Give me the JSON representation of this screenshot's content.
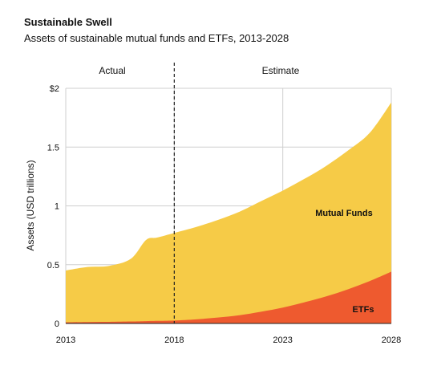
{
  "chart_data": {
    "type": "area",
    "title": "Sustainable Swell",
    "subtitle": "Assets of sustainable mutual funds and ETFs, 2013-2028",
    "ylabel": "Assets (USD trillions)",
    "xlabel": "",
    "x": [
      2013,
      2014,
      2015,
      2016,
      2016.7,
      2017.2,
      2018,
      2019,
      2020,
      2021,
      2022,
      2023,
      2024,
      2025,
      2026,
      2027,
      2028
    ],
    "series": [
      {
        "name": "ETFs",
        "stacked": true,
        "values": [
          0.01,
          0.012,
          0.014,
          0.017,
          0.02,
          0.022,
          0.025,
          0.035,
          0.05,
          0.07,
          0.1,
          0.135,
          0.18,
          0.23,
          0.29,
          0.36,
          0.44
        ]
      },
      {
        "name": "Mutual Funds",
        "stacked": true,
        "values": [
          0.44,
          0.468,
          0.476,
          0.533,
          0.69,
          0.708,
          0.745,
          0.785,
          0.83,
          0.88,
          0.94,
          0.995,
          1.05,
          1.11,
          1.18,
          1.26,
          1.44
        ]
      }
    ],
    "stack_totals": [
      0.45,
      0.48,
      0.49,
      0.55,
      0.71,
      0.73,
      0.77,
      0.82,
      0.88,
      0.95,
      1.04,
      1.13,
      1.23,
      1.34,
      1.47,
      1.62,
      1.88
    ],
    "xticks": [
      "2013",
      "2018",
      "2023",
      "2028"
    ],
    "yticks": [
      "0",
      "0.5",
      "1",
      "1.5",
      "$2"
    ],
    "ylim": [
      0,
      2
    ],
    "xlim": [
      2013,
      2028
    ],
    "phases": [
      "Actual",
      "Estimate"
    ],
    "divider_year": 2018,
    "colors": {
      "mutual_funds": "#F6CB47",
      "etfs": "#EE5A2F",
      "grid": "#cfcfcf",
      "axis": "#222222"
    }
  }
}
